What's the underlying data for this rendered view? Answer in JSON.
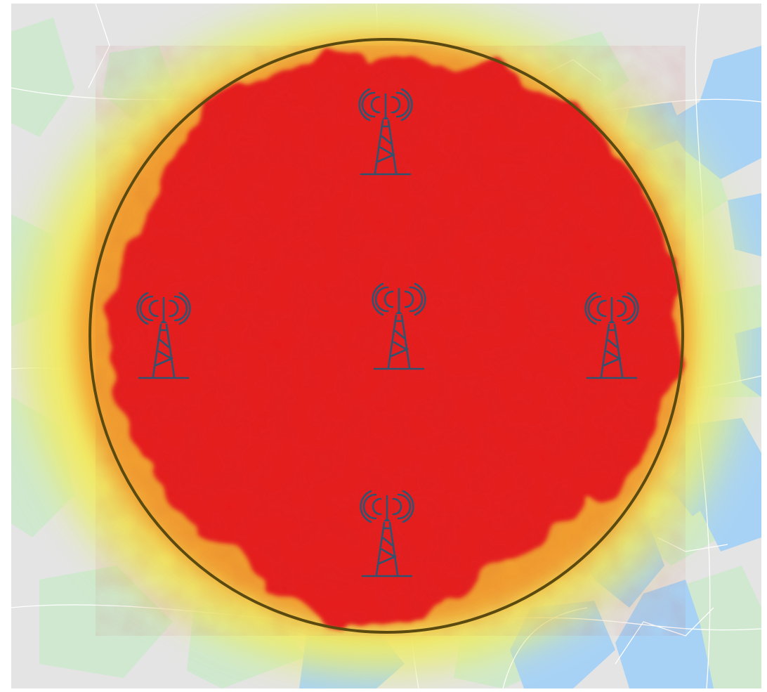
{
  "map": {
    "colors": {
      "land": "#e4e4e4",
      "parks": "#cfe8cf",
      "water": "#a8d2f5",
      "roads": "#ffffff",
      "coverage_strong": "#e61e1e",
      "coverage_medium": "#f39a2a",
      "coverage_weak": "#f7ea55",
      "coverage_fringe": "#d8ee9a",
      "range_ring": "#5a4a10",
      "tower": "#2f5472"
    },
    "range_ring": {
      "visible": true
    },
    "towers": [
      {
        "id": "north",
        "icon": "cell-tower-icon"
      },
      {
        "id": "west",
        "icon": "cell-tower-icon"
      },
      {
        "id": "center",
        "icon": "cell-tower-icon"
      },
      {
        "id": "east",
        "icon": "cell-tower-icon"
      },
      {
        "id": "south",
        "icon": "cell-tower-icon"
      }
    ]
  }
}
